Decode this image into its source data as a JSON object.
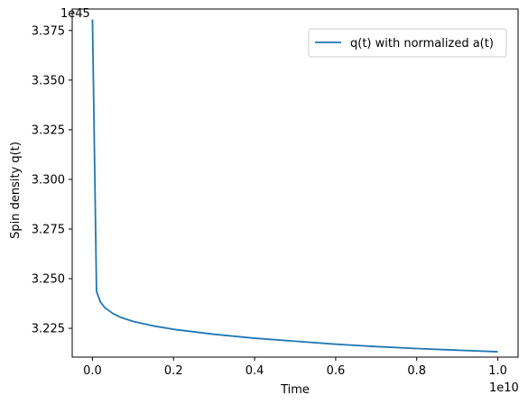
{
  "chart_data": {
    "type": "line",
    "xlabel": "Time",
    "ylabel": "Spin density q(t)",
    "x_offset_label": "1e10",
    "y_offset_label": "1e45",
    "xlim": [
      -0.05,
      1.05
    ],
    "ylim": [
      3.2105,
      3.3858
    ],
    "x_ticks": [
      0.0,
      0.2,
      0.4,
      0.6,
      0.8,
      1.0
    ],
    "x_tick_labels": [
      "0.0",
      "0.2",
      "0.4",
      "0.6",
      "0.8",
      "1.0"
    ],
    "y_ticks": [
      3.225,
      3.25,
      3.275,
      3.3,
      3.325,
      3.35,
      3.375
    ],
    "y_tick_labels": [
      "3.225",
      "3.250",
      "3.275",
      "3.300",
      "3.325",
      "3.350",
      "3.375"
    ],
    "legend_position": "upper-right",
    "series": [
      {
        "name": "q(t) with normalized a(t)",
        "color": "#1f77b4",
        "x": [
          0.0,
          0.01,
          0.02,
          0.03,
          0.05,
          0.07,
          0.1,
          0.15,
          0.2,
          0.3,
          0.4,
          0.5,
          0.6,
          0.7,
          0.8,
          0.9,
          1.0
        ],
        "y": [
          3.3805,
          3.2435,
          3.2382,
          3.2355,
          3.2325,
          3.2305,
          3.2285,
          3.2262,
          3.2245,
          3.222,
          3.22,
          3.2185,
          3.217,
          3.2158,
          3.2148,
          3.214,
          3.2132
        ]
      }
    ]
  }
}
